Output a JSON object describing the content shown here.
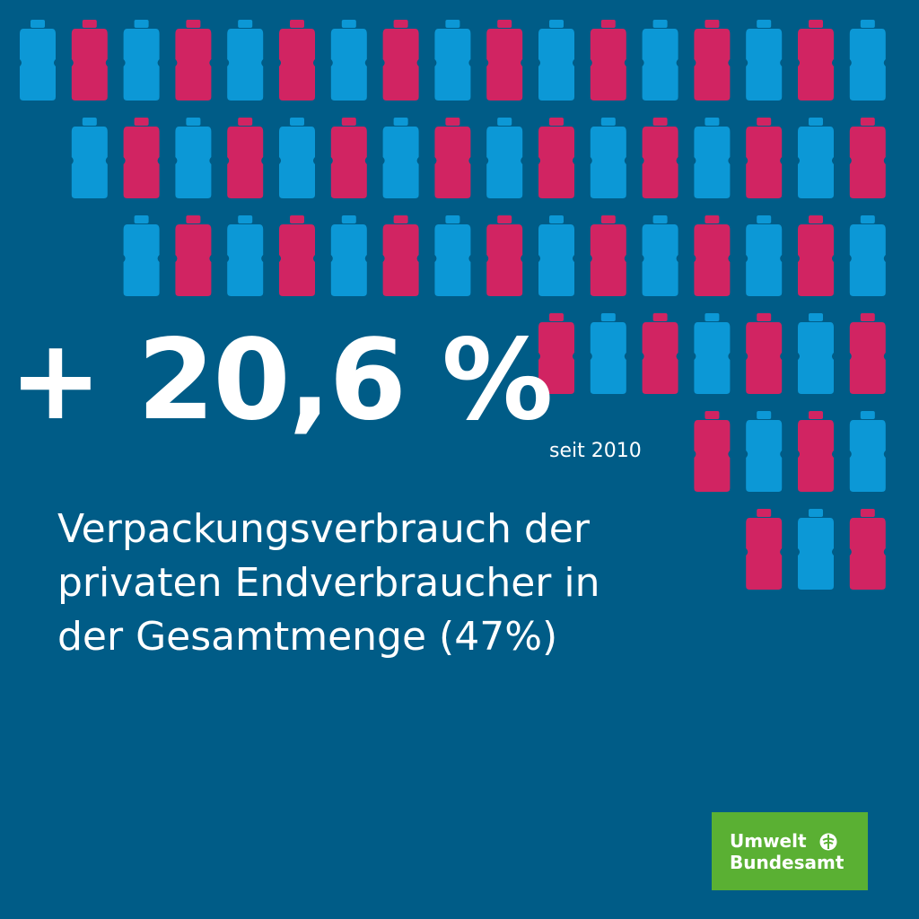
{
  "colors": {
    "background": "#005c87",
    "bottle_blue": "#0c98d6",
    "bottle_red": "#d12462",
    "text": "#ffffff",
    "logo_green": "#5ab033"
  },
  "headline": {
    "value": "+ 20,6 %",
    "since": "seit 2010"
  },
  "description": {
    "lines": [
      "Verpackungsverbrauch der",
      "privaten Endverbraucher in",
      "der Gesamtmenge (47%)"
    ]
  },
  "logo": {
    "line1": "Umwelt",
    "line2": "Bundesamt",
    "icon": "uba-tree-icon"
  },
  "bottle_grid": {
    "icon": "bottle-icon",
    "rows": [
      {
        "first_column": 0,
        "count": 17,
        "first_color": "blue"
      },
      {
        "first_column": 1,
        "count": 16,
        "first_color": "blue"
      },
      {
        "first_column": 2,
        "count": 15,
        "first_color": "blue"
      },
      {
        "first_column": 10,
        "count": 7,
        "first_color": "red"
      },
      {
        "first_column": 13,
        "count": 4,
        "first_color": "red"
      },
      {
        "first_column": 14,
        "count": 3,
        "first_color": "red"
      }
    ]
  }
}
